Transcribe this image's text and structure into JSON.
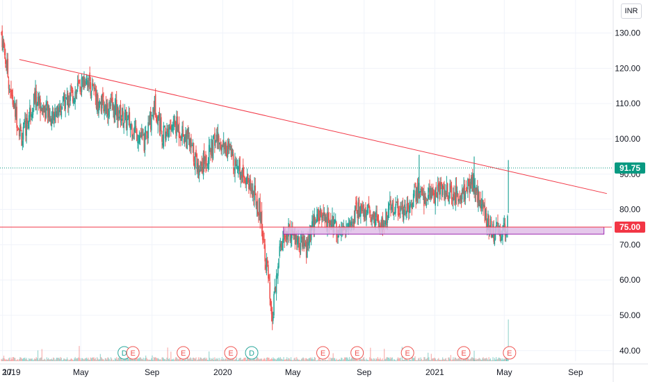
{
  "currency": "INR",
  "colors": {
    "up": "#26a69a",
    "down": "#ef5350",
    "trendline": "#f23645",
    "zone_fill": "#e1bee7",
    "zone_border": "#9c27b0",
    "current_price": "#089981",
    "level_price": "#f23645"
  },
  "chart_data": {
    "type": "candlestick",
    "title": "",
    "xlabel": "",
    "ylabel": "",
    "y_axis_side": "right",
    "ylim": [
      37,
      137
    ],
    "y_ticks": [
      "40.00",
      "50.00",
      "60.00",
      "70.00",
      "80.00",
      "90.00",
      "100.00",
      "110.00",
      "120.00",
      "130.00"
    ],
    "x_ticks": [
      {
        "label": "17",
        "date": "2018-12-17"
      },
      {
        "label": "2019",
        "date": "2019-01-01"
      },
      {
        "label": "May",
        "date": "2019-05-01"
      },
      {
        "label": "Sep",
        "date": "2019-09-01"
      },
      {
        "label": "2020",
        "date": "2020-01-01"
      },
      {
        "label": "May",
        "date": "2020-05-01"
      },
      {
        "label": "Sep",
        "date": "2020-09-01"
      },
      {
        "label": "2021",
        "date": "2021-01-01"
      },
      {
        "label": "May",
        "date": "2021-05-01"
      },
      {
        "label": "Sep",
        "date": "2021-09-01"
      }
    ],
    "xlim": [
      "2018-12-15",
      "2021-11-05"
    ],
    "price_path": [
      [
        "2018-12-15",
        130
      ],
      [
        "2019-01-01",
        112
      ],
      [
        "2019-01-20",
        100
      ],
      [
        "2019-02-10",
        112
      ],
      [
        "2019-03-10",
        106
      ],
      [
        "2019-04-01",
        110
      ],
      [
        "2019-05-01",
        115
      ],
      [
        "2019-05-10",
        118
      ],
      [
        "2019-06-01",
        110
      ],
      [
        "2019-07-01",
        108
      ],
      [
        "2019-08-01",
        103
      ],
      [
        "2019-08-20",
        99
      ],
      [
        "2019-09-05",
        110
      ],
      [
        "2019-09-20",
        101
      ],
      [
        "2019-10-10",
        104
      ],
      [
        "2019-11-01",
        100
      ],
      [
        "2019-11-20",
        92
      ],
      [
        "2019-12-10",
        96
      ],
      [
        "2019-12-20",
        100
      ],
      [
        "2020-01-05",
        98
      ],
      [
        "2020-01-25",
        93
      ],
      [
        "2020-02-15",
        88
      ],
      [
        "2020-03-05",
        80
      ],
      [
        "2020-03-20",
        60
      ],
      [
        "2020-03-25",
        47
      ],
      [
        "2020-04-10",
        70
      ],
      [
        "2020-04-25",
        74
      ],
      [
        "2020-05-10",
        70
      ],
      [
        "2020-05-25",
        69
      ],
      [
        "2020-06-10",
        78
      ],
      [
        "2020-07-10",
        76
      ],
      [
        "2020-08-01",
        74
      ],
      [
        "2020-08-20",
        80
      ],
      [
        "2020-09-10",
        79
      ],
      [
        "2020-10-01",
        76
      ],
      [
        "2020-10-20",
        81
      ],
      [
        "2020-11-10",
        80
      ],
      [
        "2020-12-01",
        85
      ],
      [
        "2020-12-20",
        83
      ],
      [
        "2021-01-10",
        86
      ],
      [
        "2021-02-01",
        84
      ],
      [
        "2021-02-20",
        85
      ],
      [
        "2021-03-05",
        88
      ],
      [
        "2021-03-20",
        82
      ],
      [
        "2021-04-10",
        74
      ],
      [
        "2021-04-25",
        73
      ],
      [
        "2021-05-05",
        74
      ],
      [
        "2021-05-08",
        79
      ]
    ],
    "spikes": [
      {
        "date": "2020-12-05",
        "high": 95.5
      },
      {
        "date": "2021-03-10",
        "high": 95
      },
      {
        "date": "2021-05-08",
        "high": 94
      }
    ],
    "trendline": {
      "start": {
        "date": "2019-01-15",
        "price": 122.5
      },
      "end": {
        "date": "2021-10-25",
        "price": 84.5
      }
    },
    "support_zone": {
      "date_start": "2020-04-15",
      "date_end": "2021-10-20",
      "low": 73,
      "high": 75
    },
    "horizontal_level": 75,
    "current_price_line": 91.75,
    "price_labels": [
      {
        "text": "91.75",
        "value": 91.75,
        "kind": "current"
      },
      {
        "text": "75.00",
        "value": 75.0,
        "kind": "level"
      }
    ],
    "events": [
      {
        "type": "D",
        "date": "2019-07-15"
      },
      {
        "type": "E",
        "date": "2019-07-30"
      },
      {
        "type": "E",
        "date": "2019-10-25"
      },
      {
        "type": "E",
        "date": "2020-01-15"
      },
      {
        "type": "D",
        "date": "2020-02-20"
      },
      {
        "type": "E",
        "date": "2020-06-22"
      },
      {
        "type": "E",
        "date": "2020-08-20"
      },
      {
        "type": "E",
        "date": "2020-11-15"
      },
      {
        "type": "E",
        "date": "2021-02-20"
      },
      {
        "type": "E",
        "date": "2021-05-10"
      }
    ]
  }
}
